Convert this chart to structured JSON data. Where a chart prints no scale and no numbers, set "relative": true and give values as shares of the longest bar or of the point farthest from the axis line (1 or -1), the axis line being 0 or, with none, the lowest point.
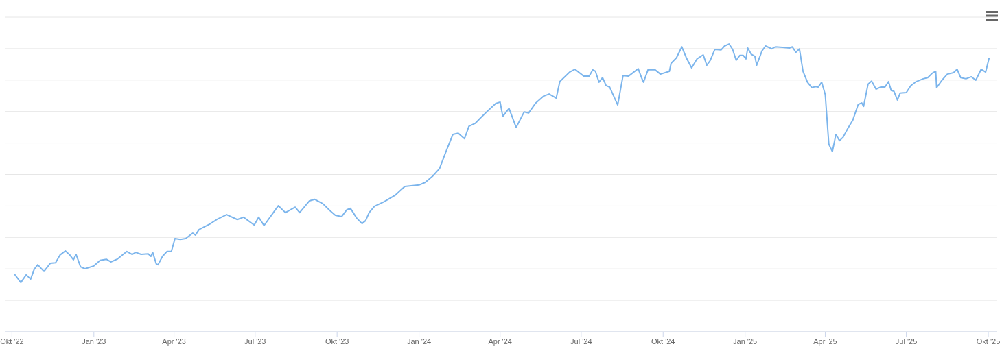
{
  "chart_data": {
    "type": "line",
    "relative": true,
    "grid": "y",
    "legend": false,
    "marker": "none",
    "x": [
      "2022-10-04",
      "2022-10-11",
      "2022-10-17",
      "2022-10-22",
      "2022-10-26",
      "2022-10-30",
      "2022-11-06",
      "2022-11-13",
      "2022-11-19",
      "2022-11-24",
      "2022-11-30",
      "2022-12-05",
      "2022-12-09",
      "2022-12-12",
      "2022-12-17",
      "2022-12-22",
      "2023-01-01",
      "2023-01-08",
      "2023-01-15",
      "2023-01-20",
      "2023-01-27",
      "2023-02-07",
      "2023-02-13",
      "2023-02-17",
      "2023-02-23",
      "2023-03-03",
      "2023-03-06",
      "2023-03-08",
      "2023-03-12",
      "2023-03-14",
      "2023-03-19",
      "2023-03-24",
      "2023-03-29",
      "2023-04-02",
      "2023-04-08",
      "2023-04-14",
      "2023-04-22",
      "2023-04-25",
      "2023-04-29",
      "2023-05-11",
      "2023-05-19",
      "2023-05-30",
      "2023-06-11",
      "2023-06-18",
      "2023-06-30",
      "2023-07-05",
      "2023-07-11",
      "2023-07-27",
      "2023-08-04",
      "2023-08-15",
      "2023-08-20",
      "2023-08-31",
      "2023-09-06",
      "2023-09-15",
      "2023-09-23",
      "2023-09-29",
      "2023-10-06",
      "2023-10-12",
      "2023-10-16",
      "2023-10-23",
      "2023-10-29",
      "2023-11-02",
      "2023-11-06",
      "2023-11-12",
      "2023-11-23",
      "2023-12-05",
      "2023-12-16",
      "2024-01-01",
      "2024-01-08",
      "2024-01-16",
      "2024-01-24",
      "2024-01-31",
      "2024-02-08",
      "2024-02-14",
      "2024-02-21",
      "2024-02-26",
      "2024-03-04",
      "2024-03-10",
      "2024-03-18",
      "2024-03-27",
      "2024-04-01",
      "2024-04-04",
      "2024-04-11",
      "2024-04-19",
      "2024-04-28",
      "2024-05-03",
      "2024-05-11",
      "2024-05-20",
      "2024-05-26",
      "2024-06-03",
      "2024-06-07",
      "2024-06-18",
      "2024-06-24",
      "2024-07-04",
      "2024-07-10",
      "2024-07-14",
      "2024-07-17",
      "2024-07-21",
      "2024-07-25",
      "2024-07-29",
      "2024-08-02",
      "2024-08-11",
      "2024-08-17",
      "2024-08-23",
      "2024-09-03",
      "2024-09-07",
      "2024-09-09",
      "2024-09-14",
      "2024-09-22",
      "2024-09-28",
      "2024-10-08",
      "2024-10-10",
      "2024-10-16",
      "2024-10-22",
      "2024-10-27",
      "2024-11-02",
      "2024-11-08",
      "2024-11-15",
      "2024-11-19",
      "2024-11-23",
      "2024-11-28",
      "2024-12-05",
      "2024-12-09",
      "2024-12-14",
      "2024-12-18",
      "2024-12-22",
      "2024-12-26",
      "2024-12-30",
      "2025-01-02",
      "2025-01-04",
      "2025-01-08",
      "2025-01-12",
      "2025-01-14",
      "2025-01-20",
      "2025-01-24",
      "2025-01-31",
      "2025-02-04",
      "2025-02-12",
      "2025-02-20",
      "2025-02-23",
      "2025-02-27",
      "2025-03-03",
      "2025-03-07",
      "2025-03-12",
      "2025-03-17",
      "2025-03-21",
      "2025-03-24",
      "2025-03-28",
      "2025-04-01",
      "2025-04-05",
      "2025-04-09",
      "2025-04-13",
      "2025-04-17",
      "2025-04-21",
      "2025-04-26",
      "2025-05-02",
      "2025-05-08",
      "2025-05-12",
      "2025-05-14",
      "2025-05-19",
      "2025-05-23",
      "2025-05-28",
      "2025-06-02",
      "2025-06-07",
      "2025-06-11",
      "2025-06-14",
      "2025-06-17",
      "2025-06-21",
      "2025-06-24",
      "2025-07-01",
      "2025-07-06",
      "2025-07-12",
      "2025-07-20",
      "2025-07-25",
      "2025-07-30",
      "2025-08-03",
      "2025-08-04",
      "2025-08-10",
      "2025-08-16",
      "2025-08-23",
      "2025-08-27",
      "2025-08-31",
      "2025-09-06",
      "2025-09-12",
      "2025-09-17",
      "2025-09-23",
      "2025-09-28",
      "2025-10-02"
    ],
    "series": [
      {
        "color": "#7cb5ec",
        "values": [
          0.2,
          0.171,
          0.198,
          0.183,
          0.217,
          0.233,
          0.21,
          0.238,
          0.24,
          0.267,
          0.281,
          0.267,
          0.25,
          0.269,
          0.226,
          0.219,
          0.229,
          0.248,
          0.252,
          0.243,
          0.252,
          0.279,
          0.269,
          0.276,
          0.269,
          0.271,
          0.262,
          0.276,
          0.236,
          0.233,
          0.262,
          0.279,
          0.279,
          0.324,
          0.321,
          0.324,
          0.343,
          0.336,
          0.355,
          0.374,
          0.39,
          0.407,
          0.39,
          0.398,
          0.371,
          0.398,
          0.369,
          0.438,
          0.414,
          0.433,
          0.414,
          0.455,
          0.46,
          0.445,
          0.421,
          0.405,
          0.4,
          0.424,
          0.429,
          0.395,
          0.376,
          0.386,
          0.414,
          0.436,
          0.452,
          0.474,
          0.505,
          0.51,
          0.519,
          0.54,
          0.567,
          0.624,
          0.686,
          0.69,
          0.671,
          0.714,
          0.724,
          0.743,
          0.767,
          0.793,
          0.798,
          0.748,
          0.776,
          0.71,
          0.764,
          0.76,
          0.795,
          0.819,
          0.826,
          0.812,
          0.869,
          0.902,
          0.912,
          0.888,
          0.888,
          0.91,
          0.905,
          0.867,
          0.883,
          0.855,
          0.85,
          0.788,
          0.89,
          0.888,
          0.914,
          0.881,
          0.867,
          0.91,
          0.91,
          0.895,
          0.905,
          0.933,
          0.952,
          0.99,
          0.952,
          0.917,
          0.948,
          0.962,
          0.926,
          0.943,
          0.981,
          0.979,
          0.993,
          1.0,
          0.981,
          0.943,
          0.96,
          0.96,
          0.948,
          0.986,
          0.964,
          0.957,
          0.926,
          0.976,
          0.993,
          0.983,
          0.99,
          0.988,
          0.986,
          0.99,
          0.971,
          0.983,
          0.905,
          0.867,
          0.848,
          0.852,
          0.85,
          0.867,
          0.824,
          0.652,
          0.626,
          0.686,
          0.664,
          0.676,
          0.705,
          0.736,
          0.79,
          0.795,
          0.783,
          0.86,
          0.871,
          0.843,
          0.85,
          0.85,
          0.869,
          0.838,
          0.836,
          0.805,
          0.829,
          0.831,
          0.855,
          0.869,
          0.879,
          0.883,
          0.898,
          0.905,
          0.848,
          0.874,
          0.895,
          0.9,
          0.912,
          0.883,
          0.879,
          0.886,
          0.874,
          0.912,
          0.902,
          0.952
        ]
      }
    ],
    "xlim": [
      "2022-09-23",
      "2025-10-11"
    ],
    "xticks": [
      {
        "value": "2022-10-01",
        "label": "Okt '22"
      },
      {
        "value": "2023-01-01",
        "label": "Jan '23"
      },
      {
        "value": "2023-04-01",
        "label": "Apr '23"
      },
      {
        "value": "2023-07-01",
        "label": "Jul '23"
      },
      {
        "value": "2023-10-01",
        "label": "Okt '23"
      },
      {
        "value": "2024-01-01",
        "label": "Jan '24"
      },
      {
        "value": "2024-04-01",
        "label": "Apr '24"
      },
      {
        "value": "2024-07-01",
        "label": "Jul '24"
      },
      {
        "value": "2024-10-01",
        "label": "Okt '24"
      },
      {
        "value": "2025-01-01",
        "label": "Jan '25"
      },
      {
        "value": "2025-04-01",
        "label": "Apr '25"
      },
      {
        "value": "2025-07-01",
        "label": "Jul '25"
      },
      {
        "value": "2025-10-01",
        "label": "Okt '25"
      }
    ]
  }
}
